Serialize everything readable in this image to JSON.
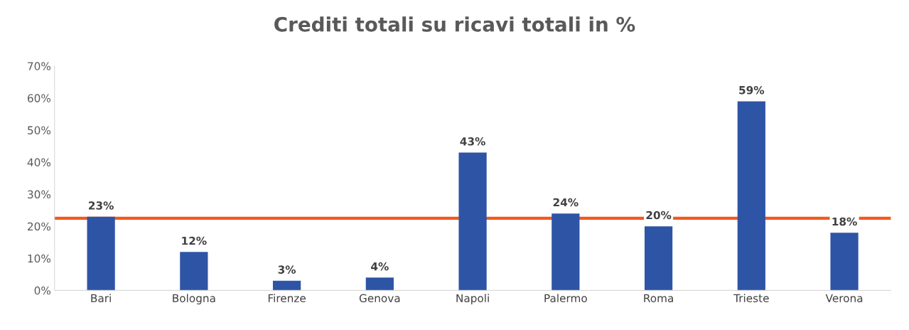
{
  "chart_data": {
    "type": "bar",
    "title": "Crediti totali su ricavi totali in %",
    "categories": [
      "Bari",
      "Bologna",
      "Firenze",
      "Genova",
      "Napoli",
      "Palermo",
      "Roma",
      "Trieste",
      "Verona"
    ],
    "values": [
      23,
      12,
      3,
      4,
      43,
      24,
      20,
      59,
      18
    ],
    "value_labels": [
      "23%",
      "12%",
      "3%",
      "4%",
      "43%",
      "24%",
      "20%",
      "59%",
      "18%"
    ],
    "color": "#2e54a6",
    "ylim": [
      0,
      70
    ],
    "yticks": [
      {
        "value": 0,
        "label": "0%"
      },
      {
        "value": 10,
        "label": "10%"
      },
      {
        "value": 20,
        "label": "20%"
      },
      {
        "value": 30,
        "label": "30%"
      },
      {
        "value": 40,
        "label": "40%"
      },
      {
        "value": 50,
        "label": "50%"
      },
      {
        "value": 60,
        "label": "60%"
      },
      {
        "value": 70,
        "label": "70%"
      }
    ],
    "ref_lines": [
      {
        "axis": "y",
        "value": 22.5,
        "color": "#f05a1e"
      }
    ]
  }
}
